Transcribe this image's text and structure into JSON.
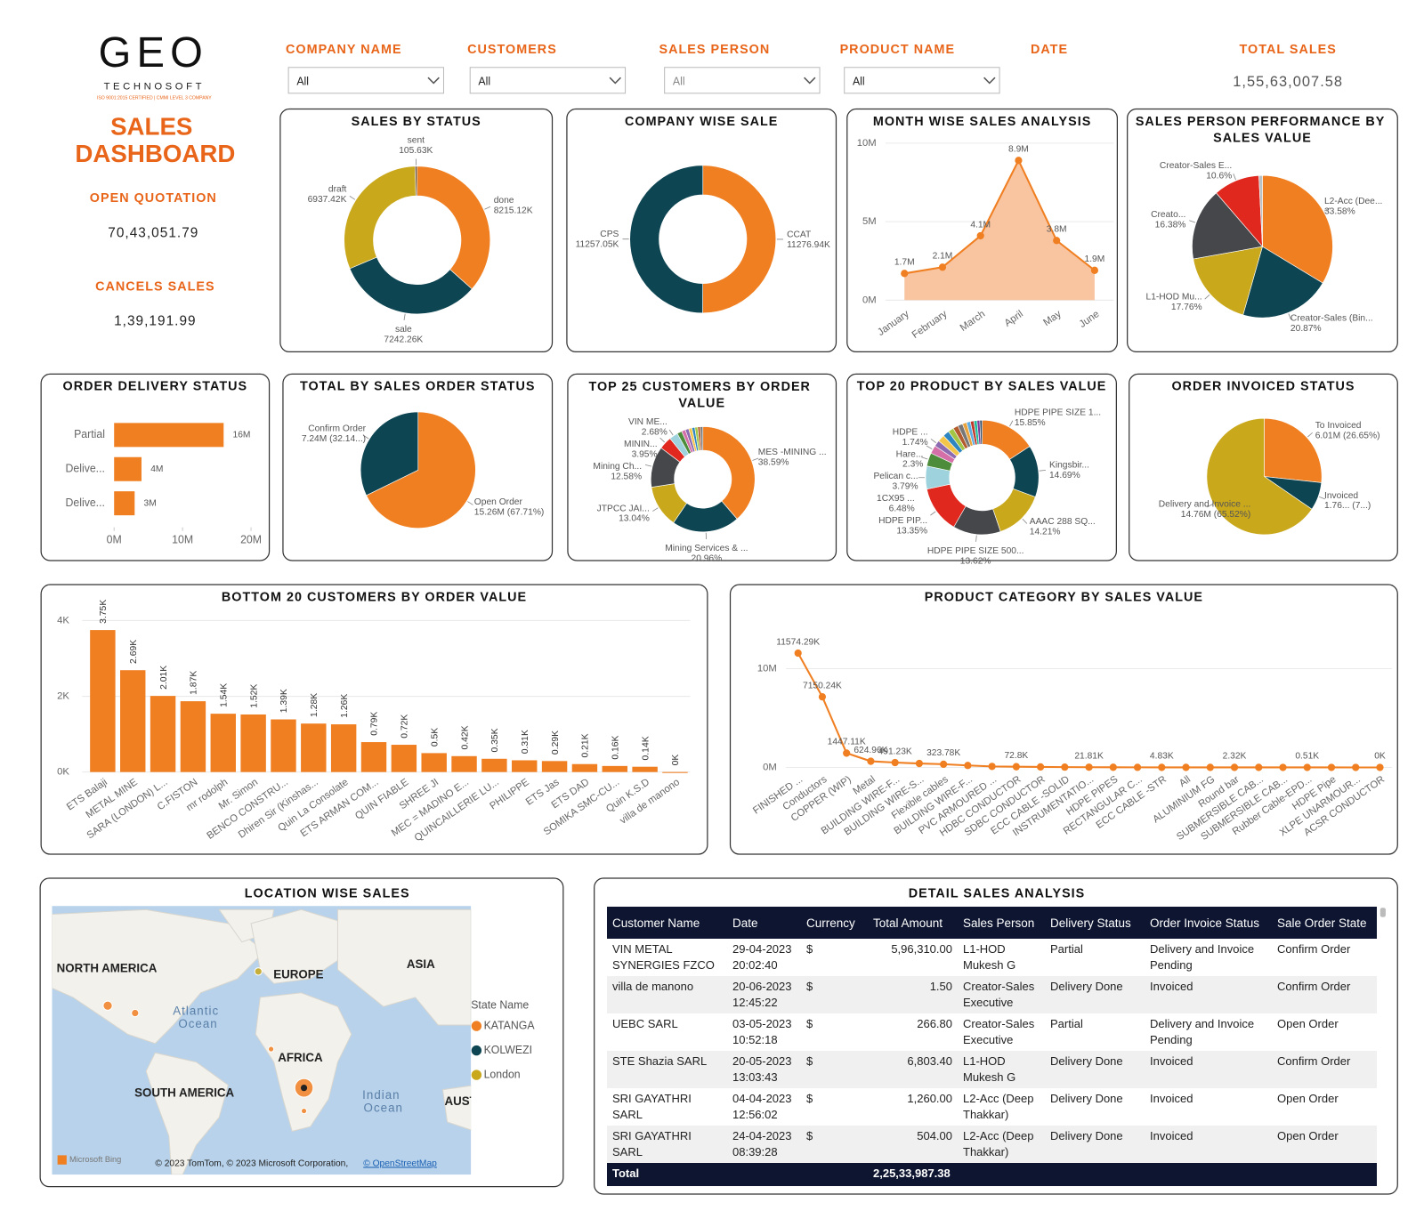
{
  "header": {
    "logo": "GEO",
    "logo_sub": "TECHNOSOFT",
    "logo_tag": "ISO 9001:2015 CERTIFIED | CMMI LEVEL 3 COMPANY",
    "title_line1": "SALES",
    "title_line2": "DASHBOARD"
  },
  "kpis": [
    {
      "label": "OPEN QUOTATION",
      "value": "70,43,051.79"
    },
    {
      "label": "CANCELS SALES",
      "value": "1,39,191.99"
    },
    {
      "label": "TOTAL SALES",
      "value": "1,55,63,007.58"
    }
  ],
  "filters": [
    {
      "label": "COMPANY NAME",
      "value": "All"
    },
    {
      "label": "CUSTOMERS",
      "value": "All"
    },
    {
      "label": "SALES PERSON",
      "value": "All"
    },
    {
      "label": "PRODUCT NAME",
      "value": "All"
    },
    {
      "label": "DATE"
    }
  ],
  "chart_data": [
    {
      "type": "donut",
      "title": "SALES BY STATUS",
      "categories": [
        "done",
        "sale",
        "draft",
        "sent"
      ],
      "values": [
        8215.12,
        7242.26,
        6937.42,
        105.63
      ],
      "value_labels": [
        "8215.12K",
        "7242.26K",
        "6937.42K",
        "105.63K"
      ],
      "colors": [
        "#F07F22",
        "#0E4552",
        "#C9A81C",
        "#6B4E2E"
      ]
    },
    {
      "type": "donut",
      "title": "COMPANY WISE SALE",
      "categories": [
        "CCAT",
        "CPS"
      ],
      "values": [
        11276.94,
        11257.05
      ],
      "value_labels": [
        "11276.94K",
        "11257.05K"
      ],
      "colors": [
        "#F07F22",
        "#0E4552"
      ]
    },
    {
      "type": "area",
      "title": "MONTH WISE SALES ANALYSIS",
      "categories": [
        "January",
        "February",
        "March",
        "April",
        "May",
        "June"
      ],
      "values": [
        1.7,
        2.1,
        4.1,
        8.9,
        3.8,
        1.9
      ],
      "value_labels": [
        "1.7M",
        "2.1M",
        "4.1M",
        "8.9M",
        "3.8M",
        "1.9M"
      ],
      "ylim": [
        0,
        10
      ],
      "yticks": [
        {
          "value": 0,
          "label": "0M"
        },
        {
          "value": 5,
          "label": "5M"
        },
        {
          "value": 10,
          "label": "10M"
        }
      ],
      "color": "#F07F22",
      "area_color": "#F9C4A0",
      "grid": true
    },
    {
      "type": "pie",
      "title": "SALES PERSON PERFORMANCE BY SALES VALUE",
      "categories": [
        "L2-Acc (Dee...",
        "Creator-Sales (Bin...",
        "L1-HOD Mu...",
        "Creato...",
        "Creator-Sales E...",
        null
      ],
      "values": [
        33.58,
        20.87,
        17.76,
        16.38,
        10.6,
        0.81
      ],
      "value_labels": [
        "33.58%",
        "20.87%",
        "17.76%",
        "16.38%",
        "10.6%",
        null
      ],
      "colors": [
        "#F07F22",
        "#0E4552",
        "#C9A81C",
        "#45474A",
        "#E0281E",
        "#B9C3C5"
      ]
    },
    {
      "type": "hbar",
      "title": "ORDER DELIVERY STATUS",
      "categories": [
        "Partial",
        "Delive...",
        "Delive..."
      ],
      "values": [
        16,
        4,
        3
      ],
      "value_labels": [
        "16M",
        "4M",
        "3M"
      ],
      "xlim": [
        0,
        20
      ],
      "xticks": [
        {
          "value": 0,
          "label": "0M"
        },
        {
          "value": 10,
          "label": "10M"
        },
        {
          "value": 20,
          "label": "20M"
        }
      ],
      "color": "#F07F22"
    },
    {
      "type": "pie",
      "title": "TOTAL BY SALES ORDER STATUS",
      "categories": [
        "Open Order",
        "Confirm Order"
      ],
      "values": [
        15.26,
        7.24
      ],
      "value_labels": [
        "15.26M (67.71%)",
        "7.24M (32.14...)"
      ],
      "colors": [
        "#F07F22",
        "#0E4552"
      ]
    },
    {
      "type": "donut",
      "title": "TOP 25 CUSTOMERS BY ORDER VALUE",
      "categories": [
        "MES -MINING ...",
        "Mining Services & ...",
        "JTPCC JAI...",
        "Mining Ch...",
        "MININ...",
        "VIN ME...",
        null,
        null,
        null,
        null,
        null,
        null,
        null,
        null
      ],
      "values": [
        38.59,
        20.96,
        13.04,
        12.58,
        3.95,
        2.68,
        1.5,
        1.2,
        1.1,
        1.0,
        0.9,
        0.9,
        0.8,
        0.8
      ],
      "value_labels": [
        "38.59%",
        "20.96%",
        "13.04%",
        "12.58%",
        "3.95%",
        "2.68%",
        null,
        null,
        null,
        null,
        null,
        null,
        null,
        null
      ],
      "colors": [
        "#F07F22",
        "#0E4552",
        "#C9A81C",
        "#45474A",
        "#E0281E",
        "#9ED3DE",
        "#4C8C3A",
        "#D46FA8",
        "#8C6BB1",
        "#F3C64B",
        "#2E86C1",
        "#A3C644",
        "#B35C2E",
        "#777777"
      ]
    },
    {
      "type": "donut",
      "title": "TOP 20 PRODUCT BY SALES VALUE",
      "categories": [
        "HDPE PIPE SIZE 1...",
        "Kingsbir...",
        "AAAC 288 SQ...",
        "HDPE PIPE SIZE 500...",
        "HDPE PIP...",
        "1CX95 ...",
        "Pelican c...",
        "Hare...",
        "HDPE ... ",
        null,
        null,
        null,
        null,
        null,
        null,
        null,
        null,
        null,
        null,
        null
      ],
      "values": [
        15.85,
        14.69,
        14.21,
        13.62,
        13.35,
        6.48,
        3.79,
        2.3,
        1.74,
        2.0,
        1.8,
        1.6,
        1.5,
        1.4,
        1.2,
        1.1,
        1.0,
        0.9,
        0.8,
        0.67
      ],
      "value_labels": [
        "15.85%",
        "14.69%",
        "14.21%",
        "13.62%",
        "13.35%",
        "6.48%",
        "3.79%",
        "2.3%",
        "1.74%",
        null,
        null,
        null,
        null,
        null,
        null,
        null,
        null,
        null,
        null,
        null
      ],
      "colors": [
        "#F07F22",
        "#0E4552",
        "#C9A81C",
        "#45474A",
        "#E0281E",
        "#9ED3DE",
        "#4C8C3A",
        "#D46FA8",
        "#8C6BB1",
        "#F3C64B",
        "#2E86C1",
        "#A3C644",
        "#B35C2E",
        "#777777",
        "#E8A33D",
        "#5DADE2",
        "#C0392B",
        "#1ABC9C",
        "#7D3C98",
        "#34495E"
      ]
    },
    {
      "type": "pie",
      "title": "ORDER INVOICED STATUS",
      "categories": [
        "To Invoiced",
        "Invoiced",
        "Delivery and Invoice ..."
      ],
      "values": [
        6.01,
        1.76,
        14.76
      ],
      "value_labels": [
        "6.01M (26.65%)",
        "1.76... (7...)",
        "14.76M (65.52%)"
      ],
      "colors": [
        "#F07F22",
        "#0E4552",
        "#C9A81C"
      ]
    },
    {
      "type": "bar",
      "title": "BOTTOM 20 CUSTOMERS BY ORDER VALUE",
      "categories": [
        "ETS Balaji",
        "METAL MINE",
        "SARA (LONDON) L...",
        "C.FISTON",
        "mr rodolph",
        "Mr. Simon",
        "BENCO CONSTRU...",
        "Dhiren Sir (Kinshas...",
        "Quin La Consolate",
        "ETS ARMAN COM...",
        "QUIN FIABLE",
        "SHREE JI",
        "MEC = MADINO E...",
        "QUINCAILLERIE LU...",
        "PHILIPPE",
        "ETS Jas",
        "ETS DAD",
        "SOMIKA SMC-CU...",
        "Quin K.S.D",
        "villa de manono"
      ],
      "values": [
        3.75,
        2.69,
        2.01,
        1.87,
        1.54,
        1.52,
        1.39,
        1.28,
        1.26,
        0.79,
        0.72,
        0.5,
        0.42,
        0.35,
        0.31,
        0.29,
        0.21,
        0.16,
        0.14,
        0
      ],
      "value_labels": [
        "3.75K",
        "2.69K",
        "2.01K",
        "1.87K",
        "1.54K",
        "1.52K",
        "1.39K",
        "1.28K",
        "1.26K",
        "0.79K",
        "0.72K",
        "0.5K",
        "0.42K",
        "0.35K",
        "0.31K",
        "0.29K",
        "0.21K",
        "0.16K",
        "0.14K",
        "0K"
      ],
      "ylim": [
        0,
        4
      ],
      "yticks": [
        {
          "value": 0,
          "label": "0K"
        },
        {
          "value": 2,
          "label": "2K"
        },
        {
          "value": 4,
          "label": "4K"
        }
      ],
      "color": "#F07F22",
      "grid": true
    },
    {
      "type": "line",
      "title": "PRODUCT CATEGORY BY SALES VALUE",
      "categories": [
        "FINISHED ...",
        "Conductors",
        "COPPER (WIP)",
        "Metal",
        "BUILDING WIRE-F...",
        "BUILDING WIRE-S...",
        "Flexible cables",
        "BUILDING WIRE-F...",
        "PVC ARMOURED ...",
        "HDBC CONDUCTOR",
        "SDBC CONDUCTOR",
        "ECC CABLE -SOLID",
        "INSTRUMENTATIO...",
        "HDPE PIPES",
        "RECTANGULAR C...",
        "ECC CABLE -STR",
        "All",
        "ALUMINIUM FG",
        "Round bar",
        "SUBMERSIBLE CAB...",
        "SUBMERSIBLE CAB...",
        "Rubber Cable-EPD...",
        "HDPE Pipe",
        "XLPE UNARMOUR...",
        "ACSR CONDUCTOR"
      ],
      "values": [
        11574.29,
        7150.24,
        1447.11,
        624.96,
        491.23,
        400,
        323.78,
        200,
        100,
        72.8,
        50,
        30,
        21.81,
        15,
        8,
        4.83,
        3.5,
        3,
        2.32,
        1.5,
        1,
        0.51,
        0.3,
        0.1,
        0
      ],
      "value_labels": [
        "11574.29K",
        "7150.24K",
        "1447.11K",
        "624.96K",
        "491.23K",
        null,
        "323.78K",
        null,
        null,
        "72.8K",
        null,
        null,
        "21.81K",
        null,
        null,
        "4.83K",
        null,
        null,
        "2.32K",
        null,
        null,
        "0.51K",
        null,
        null,
        "0K"
      ],
      "ylim": [
        0,
        13000
      ],
      "yticks": [
        {
          "value": 0,
          "label": "0M"
        },
        {
          "value": 10000,
          "label": "10M"
        }
      ],
      "color": "#F07F22",
      "grid": true
    }
  ],
  "map": {
    "title": "LOCATION WISE SALES",
    "labels": [
      "NORTH AMERICA",
      "EUROPE",
      "ASIA",
      "Atlantic Ocean",
      "AFRICA",
      "SOUTH AMERICA",
      "Indian Ocean",
      "AUSTRALIA"
    ],
    "legend_title": "State Name",
    "legend": [
      {
        "name": "KATANGA",
        "color": "#F07F22"
      },
      {
        "name": "KOLWEZI",
        "color": "#0E4552"
      },
      {
        "name": "London",
        "color": "#C9A81C"
      }
    ],
    "brand": "Microsoft Bing",
    "attribution": "© 2023 TomTom, © 2023 Microsoft Corporation,",
    "attribution_link": "© OpenStreetMap"
  },
  "table": {
    "title": "DETAIL SALES ANALYSIS",
    "columns": [
      "Customer Name",
      "Date",
      "Currency",
      "Total Amount",
      "Sales Person",
      "Delivery Status",
      "Order Invoice Status",
      "Sale Order State"
    ],
    "rows": [
      [
        "VIN METAL SYNERGIES FZCO",
        "29-04-2023 20:02:40",
        "$",
        "5,96,310.00",
        "L1-HOD Mukesh G",
        "Partial",
        "Delivery and Invoice Pending",
        "Confirm Order"
      ],
      [
        "villa de manono",
        "20-06-2023 12:45:22",
        "$",
        "1.50",
        "Creator-Sales Executive",
        "Delivery Done",
        "Invoiced",
        "Confirm Order"
      ],
      [
        "UEBC SARL",
        "03-05-2023 10:52:18",
        "$",
        "266.80",
        "Creator-Sales Executive",
        "Partial",
        "Delivery and Invoice Pending",
        "Open Order"
      ],
      [
        "STE Shazia SARL",
        "20-05-2023 13:03:43",
        "$",
        "6,803.40",
        "L1-HOD Mukesh G",
        "Delivery Done",
        "Invoiced",
        "Confirm Order"
      ],
      [
        "SRI GAYATHRI SARL",
        "04-04-2023 12:56:02",
        "$",
        "1,260.00",
        "L2-Acc (Deep Thakkar)",
        "Delivery Done",
        "Invoiced",
        "Open Order"
      ],
      [
        "SRI GAYATHRI SARL",
        "24-04-2023 08:39:28",
        "$",
        "504.00",
        "L2-Acc (Deep Thakkar)",
        "Delivery Done",
        "Invoiced",
        "Open Order"
      ]
    ],
    "total": {
      "label": "Total",
      "amount": "2,25,33,987.38"
    }
  }
}
